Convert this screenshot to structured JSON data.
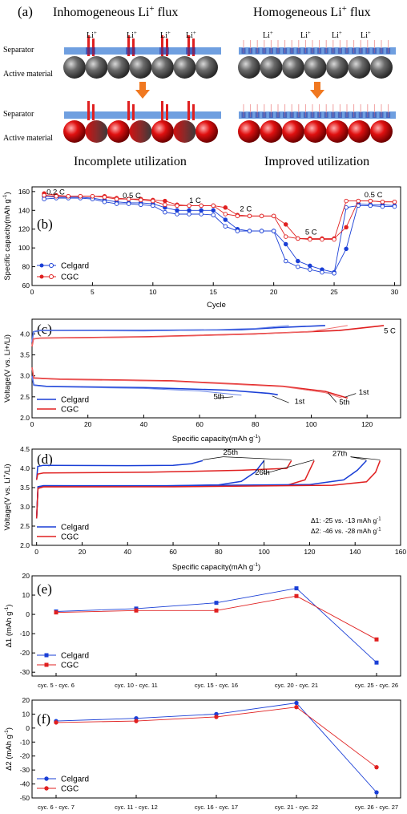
{
  "panel_a": {
    "label": "(a)",
    "left_title": "Inhomogeneous Li",
    "right_title": "Homogeneous Li",
    "title_suffix": "flux",
    "sup_plus": "+",
    "separator_label": "Separator",
    "active_label": "Active material",
    "li_label": "Li",
    "left_caption": "Incomplete utilization",
    "right_caption": "Improved utilization",
    "colors": {
      "separator": "#6f9fe0",
      "arrow": "#f07820",
      "ion_red": "#e02020",
      "sphere_dark": "#2a2a2a",
      "sphere_red": "#e01010"
    }
  },
  "chart_data": [
    {
      "id": "b",
      "type": "scatter",
      "panel_label": "(b)",
      "xlabel": "Cycle",
      "ylabel": "Specific capacity(mAh g",
      "ylabel_sup": "-1",
      "ylabel_end": ")",
      "xlim": [
        0,
        30.5
      ],
      "ylim": [
        60,
        165
      ],
      "xticks": [
        0,
        5,
        10,
        15,
        20,
        25,
        30
      ],
      "yticks": [
        60,
        80,
        100,
        120,
        140,
        160
      ],
      "rate_labels": [
        {
          "text": "0.2 C",
          "x": 1.2,
          "y": 157
        },
        {
          "text": "0.5 C",
          "x": 7.5,
          "y": 153
        },
        {
          "text": "1 C",
          "x": 13,
          "y": 148
        },
        {
          "text": "2 C",
          "x": 17.2,
          "y": 139
        },
        {
          "text": "5 C",
          "x": 22.6,
          "y": 114
        },
        {
          "text": "0.5 C",
          "x": 27.5,
          "y": 154
        }
      ],
      "series": [
        {
          "name": "Celgard",
          "color": "#1a3fd6",
          "style": "discharge-filled",
          "x": [
            1,
            2,
            3,
            4,
            5,
            6,
            7,
            8,
            9,
            10,
            11,
            12,
            13,
            14,
            15,
            16,
            17,
            18,
            19,
            20,
            21,
            22,
            23,
            24,
            25,
            26,
            27,
            28,
            29,
            30
          ],
          "y": [
            155,
            154,
            154,
            154,
            153,
            151,
            149,
            148,
            148,
            147,
            143,
            140,
            140,
            140,
            140,
            130,
            120,
            118,
            118,
            118,
            104,
            86,
            81,
            77,
            74,
            99,
            147,
            146,
            146,
            145
          ]
        },
        {
          "name": "",
          "color": "#1a3fd6",
          "style": "charge-open",
          "x": [
            1,
            2,
            3,
            4,
            5,
            6,
            7,
            8,
            9,
            10,
            11,
            12,
            13,
            14,
            15,
            16,
            17,
            18,
            19,
            20,
            21,
            22,
            23,
            24,
            25,
            26,
            27,
            28,
            29,
            30
          ],
          "y": [
            152,
            153,
            153,
            153,
            152,
            149,
            147,
            147,
            146,
            145,
            138,
            136,
            136,
            136,
            135,
            123,
            118,
            118,
            118,
            118,
            86,
            80,
            77,
            74,
            73,
            143,
            145,
            145,
            144,
            144
          ]
        },
        {
          "name": "CGC",
          "color": "#e02020",
          "style": "discharge-filled",
          "x": [
            1,
            2,
            3,
            4,
            5,
            6,
            7,
            8,
            9,
            10,
            11,
            12,
            13,
            14,
            15,
            16,
            17,
            18,
            19,
            20,
            21,
            22,
            23,
            24,
            25,
            26,
            27,
            28,
            29,
            30
          ],
          "y": [
            158,
            156,
            155,
            155,
            155,
            155,
            153,
            152,
            152,
            151,
            150,
            146,
            145,
            145,
            145,
            143,
            135,
            134,
            134,
            134,
            125,
            110,
            110,
            110,
            110,
            122,
            150,
            150,
            149,
            149
          ]
        },
        {
          "name": "",
          "color": "#e02020",
          "style": "charge-open",
          "x": [
            1,
            2,
            3,
            4,
            5,
            6,
            7,
            8,
            9,
            10,
            11,
            12,
            13,
            14,
            15,
            16,
            17,
            18,
            19,
            20,
            21,
            22,
            23,
            24,
            25,
            26,
            27,
            28,
            29,
            30
          ],
          "y": [
            156,
            155,
            155,
            155,
            155,
            154,
            152,
            152,
            151,
            150,
            146,
            145,
            145,
            145,
            145,
            136,
            134,
            134,
            134,
            134,
            112,
            110,
            109,
            109,
            109,
            150,
            150,
            150,
            149,
            149
          ]
        }
      ]
    },
    {
      "id": "c",
      "type": "line",
      "panel_label": "(c)",
      "xlabel": "Specific capacity(mAh g",
      "xlabel_sup": "-1",
      "xlabel_end": ")",
      "ylabel": "Voltage(V vs. Li+/Li)",
      "xlim": [
        0,
        132
      ],
      "ylim": [
        2.0,
        4.35
      ],
      "xticks": [
        0,
        20,
        40,
        60,
        80,
        100,
        120
      ],
      "yticks": [
        2.0,
        2.5,
        3.0,
        3.5,
        4.0
      ],
      "annotations": [
        {
          "text": "5 C",
          "x": 126,
          "y": 4.02
        },
        {
          "text": "1st",
          "x": 94,
          "y": 2.33
        },
        {
          "text": "5th",
          "x": 65,
          "y": 2.45
        },
        {
          "text": "1st",
          "x": 117,
          "y": 2.55
        },
        {
          "text": "5th",
          "x": 110,
          "y": 2.32
        }
      ],
      "legend": [
        {
          "name": "Celgard",
          "color": "#1a3fd6"
        },
        {
          "name": "CGC",
          "color": "#e02020"
        }
      ],
      "curves": [
        {
          "color": "#1a3fd6",
          "width": 1.6,
          "pts": [
            [
              0,
              3.8
            ],
            [
              0.5,
              4.05
            ],
            [
              3,
              4.08
            ],
            [
              40,
              4.08
            ],
            [
              75,
              4.1
            ],
            [
              88,
              4.15
            ],
            [
              105,
              4.2
            ]
          ]
        },
        {
          "color": "#6a86e8",
          "width": 1.0,
          "pts": [
            [
              0,
              3.8
            ],
            [
              0.5,
              4.05
            ],
            [
              3,
              4.08
            ],
            [
              40,
              4.07
            ],
            [
              60,
              4.09
            ],
            [
              80,
              4.13
            ],
            [
              92,
              4.2
            ]
          ]
        },
        {
          "color": "#e02020",
          "width": 1.6,
          "pts": [
            [
              0,
              3.7
            ],
            [
              0.5,
              3.88
            ],
            [
              3,
              3.9
            ],
            [
              40,
              3.93
            ],
            [
              80,
              4.0
            ],
            [
              110,
              4.08
            ],
            [
              126,
              4.2
            ]
          ]
        },
        {
          "color": "#f07070",
          "width": 1.0,
          "pts": [
            [
              0,
              3.7
            ],
            [
              0.5,
              3.88
            ],
            [
              3,
              3.9
            ],
            [
              40,
              3.92
            ],
            [
              80,
              3.99
            ],
            [
              100,
              4.06
            ],
            [
              113,
              4.2
            ]
          ]
        },
        {
          "color": "#1a3fd6",
          "width": 1.6,
          "pts": [
            [
              0,
              3.0
            ],
            [
              0.6,
              2.78
            ],
            [
              5,
              2.75
            ],
            [
              40,
              2.72
            ],
            [
              70,
              2.66
            ],
            [
              85,
              2.58
            ],
            [
              88,
              2.55
            ]
          ]
        },
        {
          "color": "#6a86e8",
          "width": 1.0,
          "pts": [
            [
              0,
              3.0
            ],
            [
              0.6,
              2.77
            ],
            [
              5,
              2.74
            ],
            [
              40,
              2.7
            ],
            [
              60,
              2.64
            ],
            [
              75,
              2.54
            ]
          ]
        },
        {
          "color": "#e02020",
          "width": 1.6,
          "pts": [
            [
              0,
              3.2
            ],
            [
              0.6,
              2.95
            ],
            [
              10,
              2.92
            ],
            [
              50,
              2.88
            ],
            [
              90,
              2.75
            ],
            [
              105,
              2.63
            ],
            [
              113,
              2.47
            ]
          ]
        },
        {
          "color": "#f07070",
          "width": 1.0,
          "pts": [
            [
              0,
              3.2
            ],
            [
              0.6,
              2.94
            ],
            [
              10,
              2.91
            ],
            [
              50,
              2.87
            ],
            [
              90,
              2.74
            ],
            [
              105,
              2.6
            ],
            [
              111,
              2.47
            ]
          ]
        }
      ]
    },
    {
      "id": "d",
      "type": "line",
      "panel_label": "(d)",
      "xlabel": "Specific capacity(mAh g",
      "xlabel_sup": "-1",
      "xlabel_end": ")",
      "ylabel": "Voltage(V vs. Li",
      "ylabel_sup": "+",
      "ylabel_end": "/Li)",
      "xlim": [
        -2,
        160
      ],
      "ylim": [
        2.0,
        4.5
      ],
      "xticks": [
        0,
        20,
        40,
        60,
        80,
        100,
        120,
        140,
        160
      ],
      "yticks": [
        2.0,
        2.5,
        3.0,
        3.5,
        4.0,
        4.5
      ],
      "annotations": [
        {
          "text": "25th",
          "x": 82,
          "y": 4.35
        },
        {
          "text": "26th",
          "x": 96,
          "y": 3.83
        },
        {
          "text": "27th",
          "x": 130,
          "y": 4.32
        }
      ],
      "delta_text": [
        {
          "prefix": "Δ1: -25 vs. -13 mAh g",
          "sup": "-1"
        },
        {
          "prefix": "Δ2: -46 vs. -28 mAh g",
          "sup": "-1"
        }
      ],
      "legend": [
        {
          "name": "Celgard",
          "color": "#1a3fd6"
        },
        {
          "name": "CGC",
          "color": "#e02020"
        }
      ],
      "curves": [
        {
          "color": "#1a3fd6",
          "width": 1.5,
          "pts": [
            [
              0,
              3.7
            ],
            [
              0.5,
              4.05
            ],
            [
              3,
              4.08
            ],
            [
              40,
              4.07
            ],
            [
              60,
              4.08
            ],
            [
              68,
              4.12
            ],
            [
              73,
              4.2
            ]
          ]
        },
        {
          "color": "#e02020",
          "width": 1.5,
          "pts": [
            [
              0,
              3.7
            ],
            [
              0.5,
              3.85
            ],
            [
              3,
              3.88
            ],
            [
              50,
              3.9
            ],
            [
              90,
              3.95
            ],
            [
              110,
              4.0
            ],
            [
              112,
              4.2
            ]
          ]
        },
        {
          "color": "#1a3fd6",
          "width": 1.5,
          "pts": [
            [
              0,
              2.7
            ],
            [
              0.6,
              3.52
            ],
            [
              3,
              3.55
            ],
            [
              50,
              3.54
            ],
            [
              80,
              3.57
            ],
            [
              90,
              3.66
            ],
            [
              96,
              3.9
            ],
            [
              100,
              4.2
            ]
          ]
        },
        {
          "color": "#e02020",
          "width": 1.5,
          "pts": [
            [
              0,
              2.7
            ],
            [
              0.6,
              3.48
            ],
            [
              3,
              3.52
            ],
            [
              60,
              3.53
            ],
            [
              110,
              3.56
            ],
            [
              118,
              3.7
            ],
            [
              122,
              4.2
            ]
          ]
        },
        {
          "color": "#1a3fd6",
          "width": 1.5,
          "pts": [
            [
              0,
              2.7
            ],
            [
              0.6,
              3.52
            ],
            [
              3,
              3.55
            ],
            [
              60,
              3.55
            ],
            [
              120,
              3.58
            ],
            [
              135,
              3.7
            ],
            [
              141,
              3.95
            ],
            [
              145,
              4.2
            ]
          ]
        },
        {
          "color": "#e02020",
          "width": 1.5,
          "pts": [
            [
              0,
              2.7
            ],
            [
              0.6,
              3.48
            ],
            [
              3,
              3.52
            ],
            [
              60,
              3.52
            ],
            [
              130,
              3.56
            ],
            [
              145,
              3.65
            ],
            [
              149,
              3.9
            ],
            [
              151,
              4.2
            ]
          ]
        }
      ],
      "leaders": [
        {
          "text_at": [
            82,
            4.3
          ],
          "to": [
            [
              73,
              4.22
            ],
            [
              112,
              4.22
            ]
          ]
        },
        {
          "text_at": [
            100,
            3.86
          ],
          "to": [
            [
              100,
              4.22
            ],
            [
              122,
              4.22
            ]
          ]
        },
        {
          "text_at": [
            138,
            4.3
          ],
          "to": [
            [
              145,
              4.22
            ],
            [
              151,
              4.22
            ]
          ]
        }
      ]
    },
    {
      "id": "e",
      "type": "line",
      "panel_label": "(e)",
      "ylabel": "Δ1 (mAh g",
      "ylabel_sup": "-1",
      "ylabel_end": ")",
      "categories": [
        "cyc. 5 - cyc. 6",
        "cyc. 10 - cyc. 11",
        "cyc. 15 - cyc. 16",
        "cyc. 20 - cyc. 21",
        "cyc. 25 - cyc. 26"
      ],
      "ylim": [
        -32,
        20
      ],
      "yticks": [
        -30,
        -20,
        -10,
        0,
        10,
        20
      ],
      "marker": "square",
      "series": [
        {
          "name": "Celgard",
          "color": "#1a3fd6",
          "values": [
            1.5,
            3,
            6,
            13.5,
            -25
          ]
        },
        {
          "name": "CGC",
          "color": "#e02020",
          "values": [
            1,
            2,
            2,
            9.5,
            -13
          ]
        }
      ]
    },
    {
      "id": "f",
      "type": "line",
      "panel_label": "(f)",
      "ylabel": "Δ2 (mAh g",
      "ylabel_sup": "-1",
      "ylabel_end": ")",
      "categories": [
        "cyc. 6 - cyc. 7",
        "cyc. 11 - cyc. 12",
        "cyc. 16 - cyc. 17",
        "cyc. 21 - cyc. 22",
        "cyc. 26 - cyc. 27"
      ],
      "ylim": [
        -50,
        20
      ],
      "yticks": [
        -50,
        -40,
        -30,
        -20,
        -10,
        0,
        10,
        20
      ],
      "marker": "circle",
      "series": [
        {
          "name": "Celgard",
          "color": "#1a3fd6",
          "values": [
            5,
            7,
            10,
            18,
            -46
          ]
        },
        {
          "name": "CGC",
          "color": "#e02020",
          "values": [
            4,
            5,
            8,
            15,
            -28
          ]
        }
      ]
    }
  ]
}
